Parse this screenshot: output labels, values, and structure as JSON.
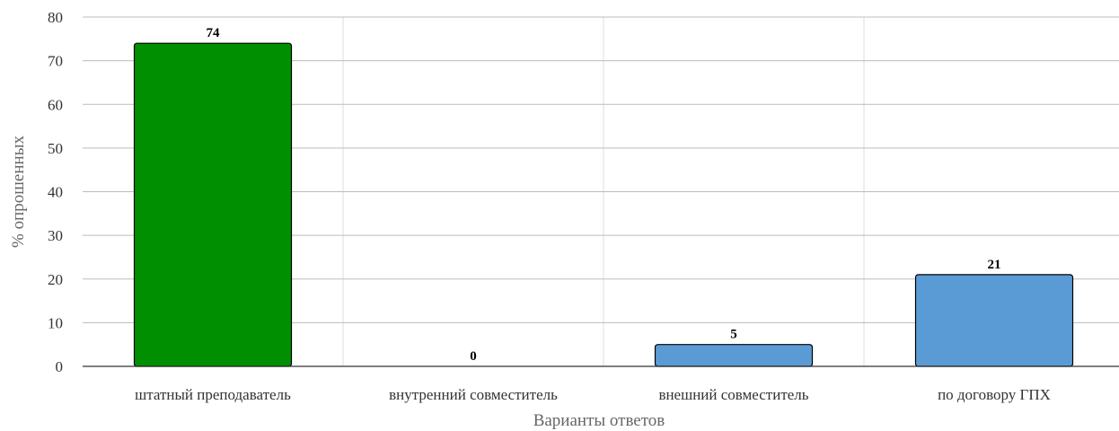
{
  "chart_data": {
    "type": "bar",
    "categories": [
      "штатный преподаватель",
      "внутренний совместитель",
      "внешний совместитель",
      "по договору ГПХ"
    ],
    "values": [
      74,
      0,
      5,
      21
    ],
    "data_labels": [
      "74",
      "0",
      "5",
      "21"
    ],
    "bar_colors": [
      "#008f00",
      "#5b9bd5",
      "#5b9bd5",
      "#5b9bd5"
    ],
    "xlabel": "Варианты ответов",
    "ylabel": "% опрошенных",
    "ylim": [
      0,
      80
    ],
    "yticks": [
      0,
      10,
      20,
      30,
      40,
      50,
      60,
      70,
      80
    ],
    "ytick_labels": [
      "0",
      "10",
      "20",
      "30",
      "40",
      "50",
      "60",
      "70",
      "80"
    ],
    "grid": true,
    "legend": "none"
  }
}
